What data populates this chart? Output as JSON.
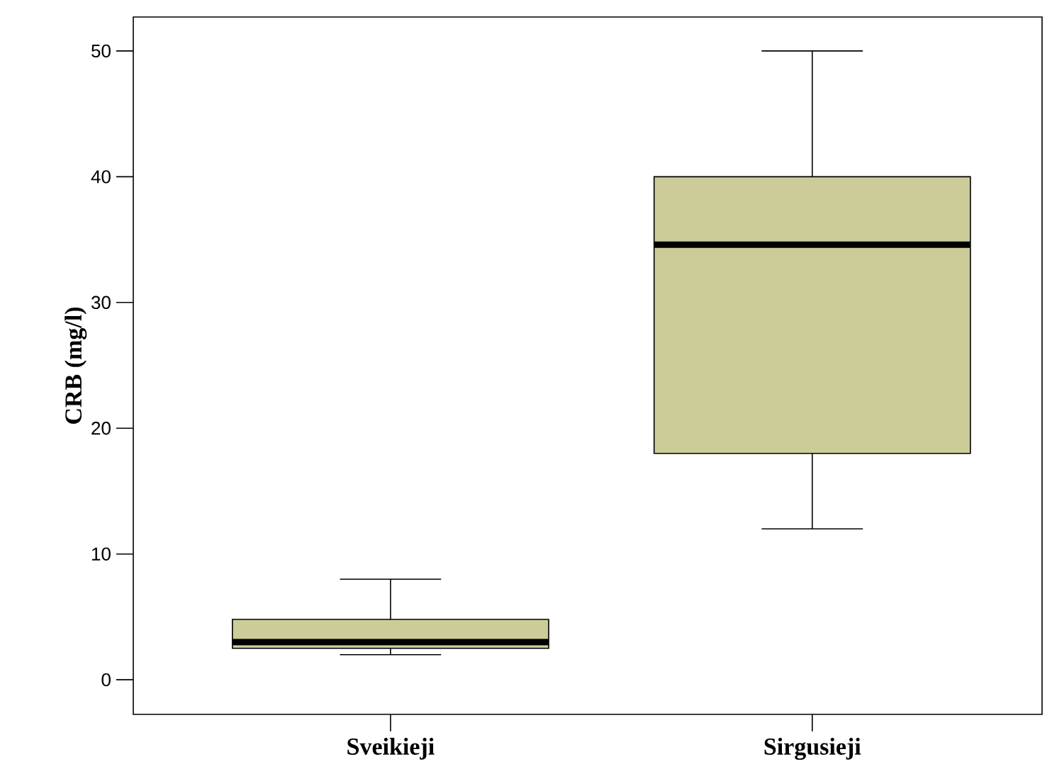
{
  "chart_data": {
    "type": "box",
    "ylabel": "CRB (mg/l)",
    "categories": [
      "Sveikieji",
      "Sirgusieji"
    ],
    "boxes": [
      {
        "low": 2,
        "q1": 2.5,
        "median": 3,
        "q3": 4.8,
        "high": 8
      },
      {
        "low": 12,
        "q1": 18,
        "median": 34.6,
        "q3": 40,
        "high": 50
      }
    ],
    "color": "#cccc99",
    "ylim": [
      -2.75,
      52.7
    ],
    "yticks": [
      0,
      10,
      20,
      30,
      40,
      50
    ]
  }
}
